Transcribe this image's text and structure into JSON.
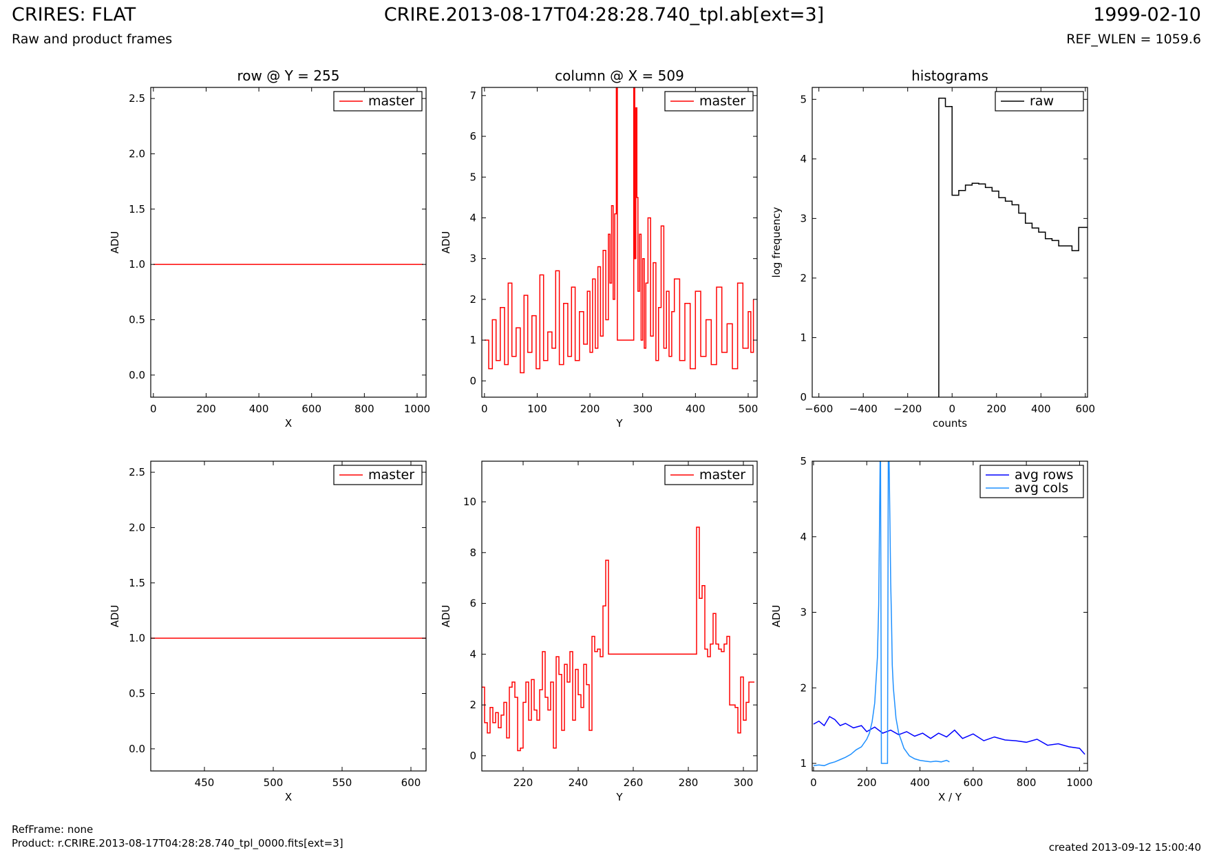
{
  "header": {
    "title": "CRIRES: FLAT",
    "subtitle": "Raw and product frames",
    "file": "CRIRE.2013-08-17T04:28:28.740_tpl.ab[ext=3]",
    "date": "1999-02-10",
    "ref_wlen": "REF_WLEN = 1059.6"
  },
  "footer": {
    "refframe": "RefFrame: none",
    "product": "Product: r.CRIRE.2013-08-17T04:28:28.740_tpl_0000.fits[ext=3]",
    "created": "created 2013-09-12 15:00:40"
  },
  "colors": {
    "master": "#ff0000",
    "raw": "#000000",
    "avg_rows": "#0000ff",
    "avg_cols": "#1e90ff"
  },
  "chart_data": [
    {
      "id": "row-top",
      "type": "line",
      "title": "row @ Y = 255",
      "xlabel": "X",
      "ylabel": "ADU",
      "xlim": [
        -10,
        1034
      ],
      "ylim": [
        -0.2,
        2.6
      ],
      "xticks": [
        0,
        200,
        400,
        600,
        800,
        1000
      ],
      "yticks": [
        0.0,
        0.5,
        1.0,
        1.5,
        2.0,
        2.5
      ],
      "ytick_labels": [
        "0.0",
        "0.5",
        "1.0",
        "1.5",
        "2.0",
        "2.5"
      ],
      "legend": [
        "master"
      ],
      "legend_position": "top-right",
      "series": [
        {
          "name": "master",
          "color": "#ff0000",
          "x": [
            0,
            1023
          ],
          "y": [
            1.0,
            1.0
          ]
        }
      ]
    },
    {
      "id": "column-top",
      "type": "line",
      "title": "column @ X = 509",
      "xlabel": "Y",
      "ylabel": "ADU",
      "xlim": [
        -5,
        517
      ],
      "ylim": [
        -0.4,
        7.2
      ],
      "xticks": [
        0,
        100,
        200,
        300,
        400,
        500
      ],
      "yticks": [
        0,
        1,
        2,
        3,
        4,
        5,
        6,
        7
      ],
      "legend": [
        "master"
      ],
      "legend_position": "top-right",
      "series": [
        {
          "name": "master",
          "color": "#ff0000",
          "step": true,
          "x": [
            0,
            8,
            15,
            22,
            30,
            38,
            45,
            52,
            60,
            68,
            75,
            82,
            90,
            98,
            105,
            112,
            120,
            128,
            135,
            142,
            150,
            158,
            165,
            172,
            180,
            188,
            195,
            200,
            205,
            210,
            215,
            220,
            225,
            230,
            235,
            238,
            241,
            244,
            247,
            250,
            252,
            255,
            260,
            265,
            270,
            275,
            280,
            283,
            285,
            287,
            289,
            291,
            294,
            297,
            300,
            303,
            306,
            310,
            315,
            320,
            325,
            330,
            335,
            340,
            345,
            350,
            355,
            360,
            370,
            380,
            390,
            400,
            410,
            420,
            430,
            440,
            450,
            460,
            470,
            480,
            490,
            500,
            505,
            510
          ],
          "y": [
            1.0,
            0.3,
            1.5,
            0.5,
            1.8,
            0.4,
            2.4,
            0.6,
            1.3,
            0.2,
            2.1,
            0.7,
            1.6,
            0.3,
            2.6,
            0.5,
            1.2,
            0.8,
            2.7,
            0.4,
            1.9,
            0.6,
            2.3,
            0.5,
            1.7,
            0.9,
            2.2,
            0.7,
            2.5,
            0.8,
            2.8,
            1.1,
            3.2,
            1.5,
            3.6,
            2.4,
            4.3,
            2.0,
            4.1,
            7.2,
            1.0,
            1.0,
            1.0,
            1.0,
            1.0,
            1.0,
            1.0,
            7.2,
            3.0,
            6.7,
            4.5,
            2.2,
            3.6,
            1.0,
            3.0,
            0.8,
            2.4,
            4.0,
            1.1,
            2.9,
            0.5,
            1.8,
            3.8,
            0.8,
            2.2,
            0.6,
            1.7,
            2.5,
            0.5,
            1.9,
            0.3,
            2.2,
            0.6,
            1.5,
            0.4,
            2.3,
            0.7,
            1.4,
            0.3,
            2.4,
            0.8,
            1.7,
            0.7,
            2.0
          ]
        }
      ]
    },
    {
      "id": "histogram",
      "type": "line",
      "title": "histograms",
      "xlabel": "counts",
      "ylabel": "log frequency",
      "xlim": [
        -630,
        610
      ],
      "ylim": [
        0,
        5.2
      ],
      "xticks": [
        -600,
        -400,
        -200,
        0,
        200,
        400,
        600
      ],
      "yticks": [
        0,
        1,
        2,
        3,
        4,
        5
      ],
      "xtick_labels": [
        "−600",
        "−400",
        "−200",
        "0",
        "200",
        "400",
        "600"
      ],
      "legend": [
        "raw"
      ],
      "legend_position": "top-right",
      "series": [
        {
          "name": "raw",
          "color": "#000000",
          "step": true,
          "x": [
            -60,
            -60,
            -30,
            0,
            30,
            60,
            90,
            120,
            150,
            180,
            210,
            240,
            270,
            300,
            330,
            360,
            390,
            420,
            450,
            480,
            510,
            540,
            570,
            600,
            610
          ],
          "y": [
            0,
            5.02,
            4.88,
            3.39,
            3.47,
            3.56,
            3.59,
            3.58,
            3.52,
            3.46,
            3.35,
            3.29,
            3.23,
            3.09,
            2.92,
            2.84,
            2.77,
            2.66,
            2.63,
            2.54,
            2.54,
            2.46,
            2.85,
            2.85,
            2.85
          ]
        }
      ]
    },
    {
      "id": "row-bottom",
      "type": "line",
      "title": "",
      "xlabel": "X",
      "ylabel": "ADU",
      "xlim": [
        411,
        611
      ],
      "ylim": [
        -0.2,
        2.6
      ],
      "xticks": [
        450,
        500,
        550,
        600
      ],
      "yticks": [
        0.0,
        0.5,
        1.0,
        1.5,
        2.0,
        2.5
      ],
      "ytick_labels": [
        "0.0",
        "0.5",
        "1.0",
        "1.5",
        "2.0",
        "2.5"
      ],
      "legend": [
        "master"
      ],
      "legend_position": "top-right",
      "series": [
        {
          "name": "master",
          "color": "#ff0000",
          "x": [
            411,
            611
          ],
          "y": [
            1.0,
            1.0
          ]
        }
      ]
    },
    {
      "id": "column-bottom",
      "type": "line",
      "title": "",
      "xlabel": "Y",
      "ylabel": "ADU",
      "xlim": [
        205,
        305
      ],
      "ylim": [
        -0.6,
        11.6
      ],
      "xticks": [
        220,
        240,
        260,
        280,
        300
      ],
      "yticks": [
        0,
        2,
        4,
        6,
        8,
        10
      ],
      "legend": [
        "master"
      ],
      "legend_position": "top-right",
      "series": [
        {
          "name": "master",
          "color": "#ff0000",
          "step": true,
          "x": [
            205,
            206,
            207,
            208,
            209,
            210,
            211,
            212,
            213,
            214,
            215,
            216,
            217,
            218,
            219,
            220,
            221,
            222,
            223,
            224,
            225,
            226,
            227,
            228,
            229,
            230,
            231,
            232,
            233,
            234,
            235,
            236,
            237,
            238,
            239,
            240,
            241,
            242,
            243,
            244,
            245,
            246,
            247,
            248,
            249,
            250,
            251,
            283,
            284,
            285,
            286,
            287,
            288,
            289,
            290,
            291,
            292,
            293,
            294,
            295,
            296,
            297,
            298,
            299,
            300,
            301,
            302,
            303,
            304
          ],
          "y": [
            2.7,
            1.3,
            0.9,
            1.9,
            1.3,
            1.7,
            1.1,
            1.6,
            2.1,
            0.7,
            2.7,
            2.9,
            2.3,
            0.2,
            0.3,
            2.1,
            2.9,
            1.4,
            3.0,
            1.8,
            1.4,
            2.6,
            4.1,
            2.3,
            1.8,
            2.9,
            0.3,
            3.9,
            3.2,
            1.0,
            3.6,
            2.9,
            4.1,
            1.4,
            3.4,
            2.4,
            1.9,
            3.6,
            2.8,
            1.0,
            4.7,
            4.1,
            4.2,
            3.9,
            5.9,
            7.7,
            4.0,
            9.0,
            6.2,
            6.7,
            4.2,
            3.9,
            4.4,
            5.6,
            4.4,
            4.2,
            4.1,
            4.4,
            4.7,
            2.0,
            2.0,
            1.9,
            0.9,
            3.1,
            1.4,
            2.1,
            2.9,
            2.9,
            2.9
          ]
        }
      ]
    },
    {
      "id": "averages",
      "type": "line",
      "title": "",
      "xlabel": "X / Y",
      "ylabel": "ADU",
      "xlim": [
        -5,
        1030
      ],
      "ylim": [
        0.9,
        5.0
      ],
      "xticks": [
        0,
        200,
        400,
        600,
        800,
        1000
      ],
      "yticks": [
        1,
        2,
        3,
        4,
        5
      ],
      "legend": [
        "avg rows",
        "avg cols"
      ],
      "legend_position": "top-right",
      "series": [
        {
          "name": "avg rows",
          "color": "#0000ff",
          "x": [
            0,
            20,
            40,
            60,
            80,
            100,
            120,
            150,
            180,
            200,
            230,
            260,
            290,
            320,
            350,
            380,
            410,
            440,
            470,
            500,
            530,
            560,
            600,
            640,
            680,
            720,
            760,
            800,
            840,
            880,
            920,
            960,
            1000,
            1020
          ],
          "y": [
            1.52,
            1.56,
            1.5,
            1.62,
            1.58,
            1.5,
            1.53,
            1.47,
            1.5,
            1.42,
            1.48,
            1.4,
            1.44,
            1.38,
            1.42,
            1.36,
            1.4,
            1.33,
            1.4,
            1.35,
            1.44,
            1.33,
            1.39,
            1.3,
            1.35,
            1.31,
            1.3,
            1.28,
            1.32,
            1.24,
            1.26,
            1.22,
            1.2,
            1.12
          ]
        },
        {
          "name": "avg cols",
          "color": "#1e90ff",
          "x": [
            0,
            20,
            40,
            60,
            80,
            100,
            120,
            140,
            160,
            180,
            200,
            210,
            220,
            230,
            240,
            245,
            248,
            250,
            252,
            255,
            260,
            265,
            270,
            275,
            278,
            281,
            284,
            287,
            290,
            293,
            296,
            300,
            305,
            310,
            320,
            330,
            340,
            350,
            360,
            380,
            400,
            420,
            440,
            460,
            480,
            500,
            511
          ],
          "y": [
            0.97,
            0.98,
            0.97,
            1.0,
            1.02,
            1.05,
            1.08,
            1.12,
            1.18,
            1.22,
            1.32,
            1.4,
            1.55,
            1.8,
            2.4,
            3.1,
            4.2,
            5.0,
            5.0,
            1.0,
            1.0,
            1.0,
            1.0,
            1.0,
            1.0,
            5.0,
            5.0,
            4.2,
            3.4,
            2.9,
            2.3,
            2.0,
            1.8,
            1.6,
            1.4,
            1.3,
            1.2,
            1.15,
            1.1,
            1.06,
            1.04,
            1.03,
            1.02,
            1.03,
            1.02,
            1.04,
            1.02
          ]
        }
      ]
    }
  ]
}
